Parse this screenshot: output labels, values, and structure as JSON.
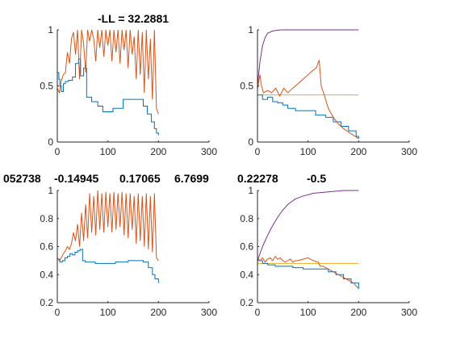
{
  "chart_data": [
    {
      "type": "line",
      "title": "-LL = 32.2881",
      "xlim": [
        0,
        300
      ],
      "ylim": [
        0,
        1
      ],
      "xticks": [
        0,
        100,
        200,
        300
      ],
      "yticks": [
        0,
        0.5,
        1
      ],
      "grid": false,
      "series": [
        {
          "color": "#0072BD",
          "style": "steps",
          "points": [
            [
              0,
              0.62
            ],
            [
              3,
              0.56
            ],
            [
              5,
              0.5
            ],
            [
              8,
              0.45
            ],
            [
              12,
              0.52
            ],
            [
              16,
              0.54
            ],
            [
              22,
              0.55
            ],
            [
              30,
              0.58
            ],
            [
              36,
              0.7
            ],
            [
              42,
              0.74
            ],
            [
              46,
              0.59
            ],
            [
              52,
              0.66
            ],
            [
              58,
              0.4
            ],
            [
              68,
              0.36
            ],
            [
              80,
              0.32
            ],
            [
              90,
              0.27
            ],
            [
              110,
              0.3
            ],
            [
              130,
              0.38
            ],
            [
              160,
              0.38
            ],
            [
              170,
              0.32
            ],
            [
              178,
              0.25
            ],
            [
              186,
              0.18
            ],
            [
              192,
              0.12
            ],
            [
              196,
              0.08
            ],
            [
              200,
              0.06
            ]
          ]
        },
        {
          "color": "#D95319",
          "style": "jagged",
          "points": [
            [
              0,
              0.48
            ],
            [
              4,
              0.44
            ],
            [
              8,
              0.55
            ],
            [
              12,
              0.6
            ],
            [
              16,
              0.62
            ],
            [
              20,
              0.8
            ],
            [
              24,
              0.7
            ],
            [
              28,
              0.92
            ],
            [
              32,
              0.98
            ],
            [
              36,
              0.78
            ],
            [
              40,
              1.0
            ],
            [
              44,
              0.56
            ],
            [
              48,
              1.0
            ],
            [
              52,
              0.88
            ],
            [
              56,
              0.62
            ],
            [
              60,
              1.0
            ],
            [
              64,
              0.9
            ],
            [
              68,
              1.0
            ],
            [
              72,
              0.92
            ],
            [
              76,
              0.72
            ],
            [
              80,
              1.0
            ],
            [
              84,
              0.84
            ],
            [
              88,
              1.0
            ],
            [
              92,
              0.76
            ],
            [
              96,
              1.0
            ],
            [
              100,
              0.86
            ],
            [
              104,
              1.0
            ],
            [
              108,
              0.72
            ],
            [
              112,
              1.0
            ],
            [
              116,
              0.8
            ],
            [
              120,
              1.0
            ],
            [
              124,
              0.7
            ],
            [
              128,
              1.0
            ],
            [
              132,
              0.82
            ],
            [
              136,
              1.0
            ],
            [
              140,
              0.66
            ],
            [
              144,
              1.0
            ],
            [
              148,
              0.78
            ],
            [
              152,
              0.94
            ],
            [
              156,
              0.56
            ],
            [
              160,
              1.0
            ],
            [
              164,
              0.6
            ],
            [
              168,
              0.98
            ],
            [
              172,
              0.44
            ],
            [
              176,
              1.0
            ],
            [
              180,
              0.56
            ],
            [
              184,
              0.92
            ],
            [
              188,
              0.38
            ],
            [
              192,
              1.0
            ],
            [
              196,
              0.3
            ],
            [
              200,
              0.25
            ]
          ]
        }
      ]
    },
    {
      "type": "line",
      "xlim": [
        0,
        300
      ],
      "ylim": [
        0,
        1
      ],
      "xticks": [
        0,
        100,
        200,
        300
      ],
      "yticks": [
        0,
        0.5,
        1
      ],
      "grid": false,
      "series": [
        {
          "color": "#7E2F8E",
          "style": "line",
          "points": [
            [
              0,
              0.5
            ],
            [
              5,
              0.72
            ],
            [
              10,
              0.86
            ],
            [
              15,
              0.93
            ],
            [
              20,
              0.97
            ],
            [
              30,
              0.99
            ],
            [
              45,
              1.0
            ],
            [
              200,
              1.0
            ]
          ]
        },
        {
          "color": "#EDB120",
          "style": "line",
          "points": [
            [
              0,
              0.42
            ],
            [
              200,
              0.42
            ]
          ]
        },
        {
          "color": "#0072BD",
          "style": "steps",
          "points": [
            [
              0,
              0.42
            ],
            [
              10,
              0.38
            ],
            [
              20,
              0.4
            ],
            [
              30,
              0.36
            ],
            [
              40,
              0.35
            ],
            [
              50,
              0.33
            ],
            [
              60,
              0.3
            ],
            [
              75,
              0.28
            ],
            [
              100,
              0.28
            ],
            [
              115,
              0.24
            ],
            [
              135,
              0.22
            ],
            [
              150,
              0.18
            ],
            [
              165,
              0.14
            ],
            [
              180,
              0.1
            ],
            [
              195,
              0.05
            ],
            [
              200,
              0.03
            ]
          ]
        },
        {
          "color": "#D95319",
          "style": "jagged",
          "points": [
            [
              0,
              0.47
            ],
            [
              5,
              0.6
            ],
            [
              8,
              0.5
            ],
            [
              12,
              0.44
            ],
            [
              20,
              0.46
            ],
            [
              28,
              0.44
            ],
            [
              36,
              0.48
            ],
            [
              44,
              0.41
            ],
            [
              52,
              0.48
            ],
            [
              60,
              0.44
            ],
            [
              70,
              0.48
            ],
            [
              80,
              0.52
            ],
            [
              90,
              0.56
            ],
            [
              100,
              0.6
            ],
            [
              110,
              0.64
            ],
            [
              116,
              0.66
            ],
            [
              122,
              0.73
            ],
            [
              126,
              0.5
            ],
            [
              132,
              0.42
            ],
            [
              140,
              0.3
            ],
            [
              150,
              0.22
            ],
            [
              160,
              0.16
            ],
            [
              170,
              0.12
            ],
            [
              180,
              0.09
            ],
            [
              190,
              0.06
            ],
            [
              200,
              0.03
            ]
          ]
        }
      ]
    },
    {
      "type": "line",
      "xlim": [
        0,
        300
      ],
      "ylim": [
        0.2,
        1
      ],
      "xticks": [
        0,
        100,
        200,
        300
      ],
      "yticks": [
        0.2,
        0.4,
        0.6,
        0.8,
        1
      ],
      "grid": false,
      "series": [
        {
          "color": "#0072BD",
          "style": "steps",
          "points": [
            [
              0,
              0.51
            ],
            [
              5,
              0.49
            ],
            [
              10,
              0.5
            ],
            [
              15,
              0.52
            ],
            [
              20,
              0.53
            ],
            [
              25,
              0.55
            ],
            [
              30,
              0.54
            ],
            [
              35,
              0.56
            ],
            [
              40,
              0.57
            ],
            [
              45,
              0.58
            ],
            [
              50,
              0.5
            ],
            [
              55,
              0.49
            ],
            [
              75,
              0.48
            ],
            [
              95,
              0.48
            ],
            [
              115,
              0.49
            ],
            [
              140,
              0.5
            ],
            [
              170,
              0.49
            ],
            [
              180,
              0.45
            ],
            [
              188,
              0.4
            ],
            [
              193,
              0.37
            ],
            [
              200,
              0.34
            ]
          ]
        },
        {
          "color": "#D95319",
          "style": "jagged",
          "points": [
            [
              0,
              0.52
            ],
            [
              4,
              0.5
            ],
            [
              8,
              0.52
            ],
            [
              12,
              0.55
            ],
            [
              16,
              0.57
            ],
            [
              20,
              0.6
            ],
            [
              24,
              0.58
            ],
            [
              28,
              0.62
            ],
            [
              32,
              0.7
            ],
            [
              36,
              0.64
            ],
            [
              40,
              0.76
            ],
            [
              44,
              0.6
            ],
            [
              48,
              0.84
            ],
            [
              52,
              0.64
            ],
            [
              56,
              0.9
            ],
            [
              60,
              0.66
            ],
            [
              64,
              0.98
            ],
            [
              68,
              0.7
            ],
            [
              72,
              0.96
            ],
            [
              76,
              0.68
            ],
            [
              80,
              1.0
            ],
            [
              84,
              0.72
            ],
            [
              88,
              0.98
            ],
            [
              92,
              0.7
            ],
            [
              96,
              0.99
            ],
            [
              100,
              0.74
            ],
            [
              104,
              0.98
            ],
            [
              108,
              0.7
            ],
            [
              112,
              0.99
            ],
            [
              116,
              0.72
            ],
            [
              120,
              0.98
            ],
            [
              124,
              0.74
            ],
            [
              128,
              0.99
            ],
            [
              132,
              0.68
            ],
            [
              136,
              0.98
            ],
            [
              140,
              0.66
            ],
            [
              144,
              0.98
            ],
            [
              148,
              0.72
            ],
            [
              152,
              0.96
            ],
            [
              156,
              0.62
            ],
            [
              160,
              0.98
            ],
            [
              164,
              0.64
            ],
            [
              168,
              0.96
            ],
            [
              172,
              0.6
            ],
            [
              176,
              0.98
            ],
            [
              180,
              0.58
            ],
            [
              184,
              0.96
            ],
            [
              188,
              0.56
            ],
            [
              192,
              0.98
            ],
            [
              196,
              0.52
            ],
            [
              200,
              0.5
            ]
          ]
        }
      ]
    },
    {
      "type": "line",
      "xlim": [
        0,
        300
      ],
      "ylim": [
        0.2,
        1
      ],
      "xticks": [
        0,
        100,
        200,
        300
      ],
      "yticks": [
        0.2,
        0.4,
        0.6,
        0.8,
        1
      ],
      "grid": false,
      "series": [
        {
          "color": "#7E2F8E",
          "style": "line",
          "points": [
            [
              0,
              0.5
            ],
            [
              10,
              0.6
            ],
            [
              20,
              0.68
            ],
            [
              30,
              0.75
            ],
            [
              40,
              0.81
            ],
            [
              50,
              0.86
            ],
            [
              60,
              0.9
            ],
            [
              75,
              0.94
            ],
            [
              90,
              0.96
            ],
            [
              110,
              0.98
            ],
            [
              140,
              0.99
            ],
            [
              170,
              1.0
            ],
            [
              200,
              1.0
            ]
          ]
        },
        {
          "color": "#EDB120",
          "style": "line",
          "points": [
            [
              0,
              0.48
            ],
            [
              200,
              0.48
            ]
          ]
        },
        {
          "color": "#0072BD",
          "style": "steps",
          "points": [
            [
              0,
              0.5
            ],
            [
              10,
              0.48
            ],
            [
              20,
              0.47
            ],
            [
              35,
              0.46
            ],
            [
              50,
              0.46
            ],
            [
              70,
              0.45
            ],
            [
              90,
              0.44
            ],
            [
              120,
              0.44
            ],
            [
              140,
              0.42
            ],
            [
              155,
              0.4
            ],
            [
              170,
              0.37
            ],
            [
              185,
              0.34
            ],
            [
              200,
              0.3
            ]
          ]
        },
        {
          "color": "#D95319",
          "style": "jagged",
          "points": [
            [
              0,
              0.52
            ],
            [
              5,
              0.5
            ],
            [
              10,
              0.52
            ],
            [
              15,
              0.49
            ],
            [
              20,
              0.51
            ],
            [
              25,
              0.52
            ],
            [
              30,
              0.5
            ],
            [
              35,
              0.53
            ],
            [
              40,
              0.51
            ],
            [
              45,
              0.52
            ],
            [
              50,
              0.5
            ],
            [
              55,
              0.49
            ],
            [
              60,
              0.5
            ],
            [
              65,
              0.51
            ],
            [
              70,
              0.49
            ],
            [
              75,
              0.5
            ],
            [
              80,
              0.5
            ],
            [
              90,
              0.51
            ],
            [
              100,
              0.52
            ],
            [
              110,
              0.5
            ],
            [
              120,
              0.49
            ],
            [
              124,
              0.46
            ],
            [
              130,
              0.46
            ],
            [
              140,
              0.44
            ],
            [
              150,
              0.42
            ],
            [
              160,
              0.4
            ],
            [
              170,
              0.38
            ],
            [
              180,
              0.36
            ],
            [
              190,
              0.34
            ],
            [
              200,
              0.3
            ]
          ]
        }
      ]
    }
  ],
  "row_labels": [
    "052738",
    "-0.14945",
    "0.17065",
    "6.7699",
    "0.22278",
    "-0.5"
  ]
}
